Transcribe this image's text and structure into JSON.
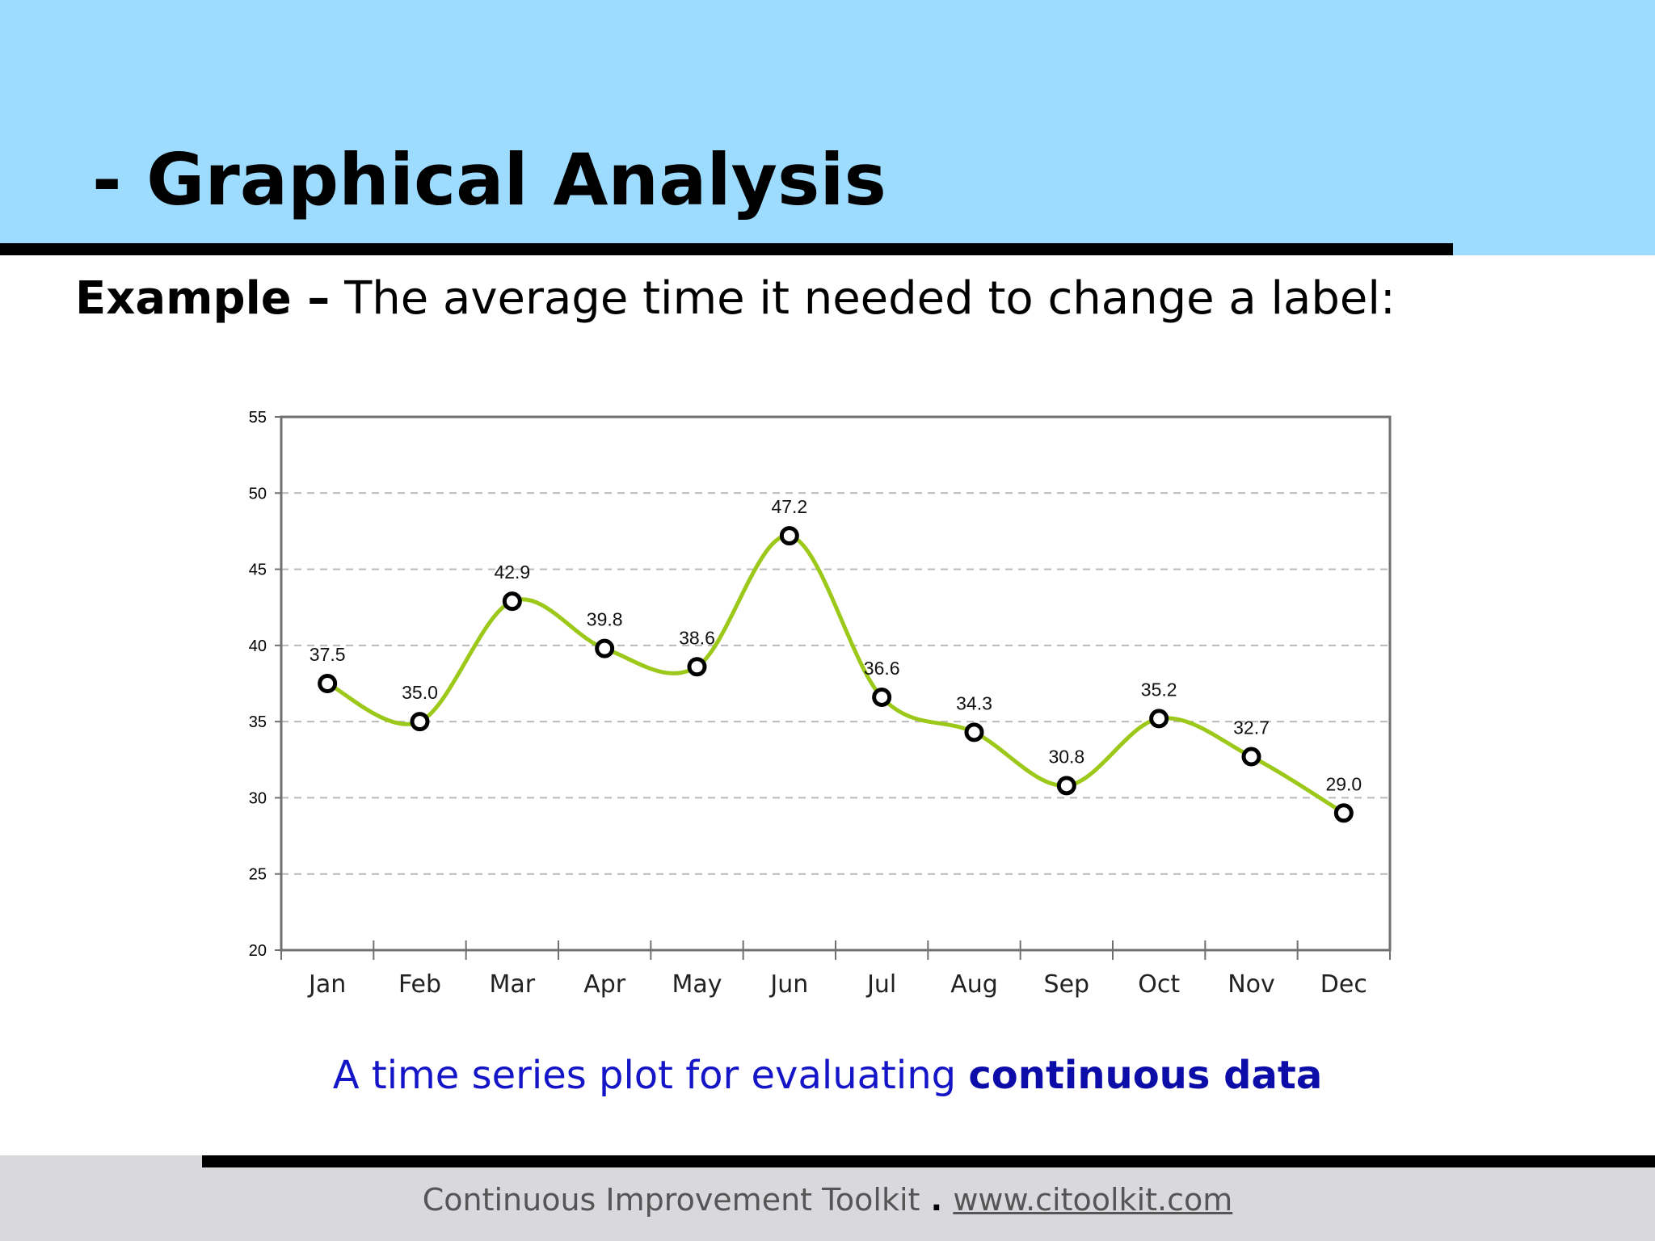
{
  "slide": {
    "title": "- Graphical Analysis",
    "example_lead": "Example –",
    "example_text": " The average time it needed to change a label:",
    "caption_plain": "A time series plot for evaluating ",
    "caption_bold": "continuous data",
    "footer_name": "Continuous Improvement Toolkit",
    "footer_separator": " . ",
    "footer_url": "www.citoolkit.com"
  },
  "colors": {
    "header_band": "#9ddcfe",
    "line": "#9cc81a",
    "caption": "#1515c8",
    "footer_band": "#d9d8dc"
  },
  "chart_data": {
    "type": "line",
    "categories": [
      "Jan",
      "Feb",
      "Mar",
      "Apr",
      "May",
      "Jun",
      "Jul",
      "Aug",
      "Sep",
      "Oct",
      "Nov",
      "Dec"
    ],
    "series": [
      {
        "values": [
          37.5,
          35.0,
          42.9,
          39.8,
          38.6,
          47.2,
          36.6,
          34.3,
          30.8,
          35.2,
          32.7,
          29.0
        ]
      }
    ],
    "data_labels": [
      "37.5",
      "35.0",
      "42.9",
      "39.8",
      "38.6",
      "47.2",
      "36.6",
      "34.3",
      "30.8",
      "35.2",
      "32.7",
      "29.0"
    ],
    "y_ticks": [
      20,
      25,
      30,
      35,
      40,
      45,
      50,
      55
    ],
    "ylim": [
      20,
      55
    ],
    "grid": "horizontal dashed",
    "line_style": "smoothed",
    "markers": "hollow circles",
    "legend": false
  }
}
